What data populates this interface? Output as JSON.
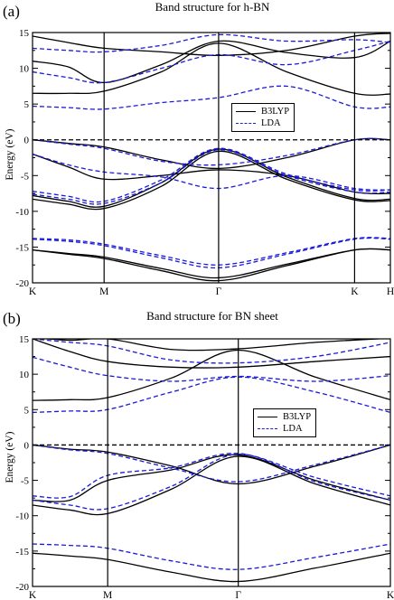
{
  "chart_data": [
    {
      "panel_label": "(a)",
      "type": "line",
      "title": "Band structure for h-BN",
      "ylabel": "Energy (eV)",
      "xlabel": "",
      "ylim": [
        -20,
        15
      ],
      "yticks": [
        -20,
        -15,
        -10,
        -5,
        0,
        5,
        10,
        15
      ],
      "kpath": [
        {
          "label": "K",
          "x": 0.0
        },
        {
          "label": "M",
          "x": 0.2
        },
        {
          "label": "Γ",
          "x": 0.52
        },
        {
          "label": "K",
          "x": 0.9
        },
        {
          "label": "H",
          "x": 1.0
        }
      ],
      "fermi_level": 0,
      "grid": false,
      "legend": {
        "placement": "center-right",
        "entries": [
          "B3LYP",
          "LDA"
        ]
      },
      "colors": {
        "B3LYP": "#000000",
        "LDA": "#1a1adc"
      },
      "series": [
        {
          "name": "B3LYP",
          "style": "solid",
          "color": "#000000",
          "bands": [
            {
              "x": [
                0,
                0.1,
                0.2,
                0.36,
                0.52,
                0.71,
                0.9,
                1.0
              ],
              "y": [
                -15.4,
                -15.9,
                -16.4,
                -18.0,
                -19.3,
                -17.4,
                -15.4,
                -15.4
              ]
            },
            {
              "x": [
                0,
                0.1,
                0.2,
                0.36,
                0.52,
                0.71,
                0.9,
                1.0
              ],
              "y": [
                -15.4,
                -16.0,
                -16.6,
                -18.3,
                -19.7,
                -17.6,
                -15.4,
                -15.4
              ]
            },
            {
              "x": [
                0,
                0.1,
                0.2,
                0.36,
                0.52,
                0.71,
                0.9,
                1.0
              ],
              "y": [
                -8.3,
                -9.0,
                -9.6,
                -6.5,
                -1.6,
                -5.5,
                -8.4,
                -8.5
              ]
            },
            {
              "x": [
                0,
                0.1,
                0.2,
                0.36,
                0.52,
                0.71,
                0.9,
                1.0
              ],
              "y": [
                -7.8,
                -8.6,
                -9.3,
                -6.0,
                -1.3,
                -5.2,
                -8.2,
                -8.3
              ]
            },
            {
              "x": [
                0,
                0.1,
                0.2,
                0.36,
                0.52,
                0.71,
                0.9,
                1.0
              ],
              "y": [
                -2.0,
                -3.8,
                -5.5,
                -5.0,
                -4.2,
                -5.0,
                -7.3,
                -7.5
              ]
            },
            {
              "x": [
                0,
                0.1,
                0.2,
                0.36,
                0.52,
                0.71,
                0.9,
                1.0
              ],
              "y": [
                0,
                -0.5,
                -1.0,
                -2.8,
                -4.0,
                -2.5,
                0,
                0
              ]
            },
            {
              "x": [
                0,
                0.1,
                0.2,
                0.36,
                0.52,
                0.71,
                0.9,
                1.0
              ],
              "y": [
                6.5,
                6.5,
                6.8,
                9.5,
                13.5,
                9.5,
                6.5,
                6.4
              ]
            },
            {
              "x": [
                0,
                0.1,
                0.2,
                0.36,
                0.52,
                0.71,
                0.9,
                1.0
              ],
              "y": [
                11.0,
                10.2,
                8.0,
                10.5,
                13.8,
                12.2,
                11.5,
                13.8
              ]
            },
            {
              "x": [
                0,
                0.1,
                0.2,
                0.36,
                0.52,
                0.71,
                0.9,
                1.0
              ],
              "y": [
                14.5,
                13.6,
                12.8,
                12.3,
                11.8,
                12.5,
                14.5,
                14.9
              ]
            }
          ]
        },
        {
          "name": "LDA",
          "style": "dashed",
          "color": "#1a1adc",
          "bands": [
            {
              "x": [
                0,
                0.1,
                0.2,
                0.36,
                0.52,
                0.71,
                0.9,
                1.0
              ],
              "y": [
                -13.8,
                -14.0,
                -14.6,
                -16.2,
                -17.5,
                -15.8,
                -13.8,
                -13.8
              ]
            },
            {
              "x": [
                0,
                0.1,
                0.2,
                0.36,
                0.52,
                0.71,
                0.9,
                1.0
              ],
              "y": [
                -13.9,
                -14.2,
                -14.8,
                -16.5,
                -17.9,
                -16.0,
                -13.9,
                -13.9
              ]
            },
            {
              "x": [
                0,
                0.1,
                0.2,
                0.36,
                0.52,
                0.71,
                0.9,
                1.0
              ],
              "y": [
                -7.6,
                -8.3,
                -8.9,
                -6.0,
                -1.4,
                -5.0,
                -7.3,
                -7.3
              ]
            },
            {
              "x": [
                0,
                0.1,
                0.2,
                0.36,
                0.52,
                0.71,
                0.9,
                1.0
              ],
              "y": [
                -7.2,
                -7.9,
                -8.6,
                -5.6,
                -1.2,
                -4.8,
                -7.0,
                -7.0
              ]
            },
            {
              "x": [
                0,
                0.1,
                0.2,
                0.36,
                0.52,
                0.71,
                0.9,
                1.0
              ],
              "y": [
                -2.0,
                -3.5,
                -4.5,
                -5.2,
                -6.8,
                -5.0,
                -6.8,
                -7.0
              ]
            },
            {
              "x": [
                0,
                0.1,
                0.2,
                0.36,
                0.52,
                0.71,
                0.9,
                1.0
              ],
              "y": [
                0,
                -0.6,
                -1.2,
                -3.0,
                -3.5,
                -2.2,
                0,
                0
              ]
            },
            {
              "x": [
                0,
                0.1,
                0.2,
                0.36,
                0.52,
                0.71,
                0.9,
                1.0
              ],
              "y": [
                4.7,
                4.5,
                4.3,
                5.2,
                5.9,
                7.5,
                4.6,
                4.6
              ]
            },
            {
              "x": [
                0,
                0.1,
                0.2,
                0.36,
                0.52,
                0.71,
                0.9,
                1.0
              ],
              "y": [
                9.5,
                8.7,
                8.0,
                10.0,
                11.9,
                10.5,
                12.5,
                13.8
              ]
            },
            {
              "x": [
                0,
                0.1,
                0.2,
                0.36,
                0.52,
                0.71,
                0.9,
                1.0
              ],
              "y": [
                12.8,
                12.5,
                12.3,
                13.2,
                14.7,
                13.8,
                14.0,
                13.6
              ]
            }
          ]
        }
      ]
    },
    {
      "panel_label": "(b)",
      "type": "line",
      "title": "Band structure for BN sheet",
      "ylabel": "Energy (eV)",
      "xlabel": "",
      "ylim": [
        -20,
        15
      ],
      "yticks": [
        -20,
        -15,
        -10,
        -5,
        0,
        5,
        10,
        15
      ],
      "kpath": [
        {
          "label": "K",
          "x": 0.0
        },
        {
          "label": "M",
          "x": 0.21
        },
        {
          "label": "Γ",
          "x": 0.575
        },
        {
          "label": "K",
          "x": 1.0
        }
      ],
      "fermi_level": 0,
      "grid": false,
      "legend": {
        "placement": "center-right",
        "entries": [
          "B3LYP",
          "LDA"
        ]
      },
      "colors": {
        "B3LYP": "#000000",
        "LDA": "#1a1adc"
      },
      "series": [
        {
          "name": "B3LYP",
          "style": "solid",
          "color": "#000000",
          "bands": [
            {
              "x": [
                0,
                0.105,
                0.21,
                0.39,
                0.575,
                0.79,
                1.0
              ],
              "y": [
                -15.3,
                -15.7,
                -16.2,
                -18.0,
                -19.3,
                -17.4,
                -15.3
              ]
            },
            {
              "x": [
                0,
                0.105,
                0.21,
                0.39,
                0.575,
                0.79,
                1.0
              ],
              "y": [
                -8.5,
                -9.2,
                -9.7,
                -6.2,
                -1.6,
                -5.5,
                -8.5
              ]
            },
            {
              "x": [
                0,
                0.105,
                0.21,
                0.39,
                0.575,
                0.79,
                1.0
              ],
              "y": [
                -7.8,
                -7.8,
                -5.0,
                -3.5,
                -1.4,
                -5.0,
                -7.8
              ]
            },
            {
              "x": [
                0,
                0.105,
                0.21,
                0.39,
                0.575,
                0.79,
                1.0
              ],
              "y": [
                0,
                -0.6,
                -1.0,
                -3.0,
                -5.5,
                -3.0,
                0
              ]
            },
            {
              "x": [
                0,
                0.105,
                0.21,
                0.39,
                0.575,
                0.79,
                1.0
              ],
              "y": [
                6.3,
                6.4,
                6.7,
                9.5,
                13.4,
                9.6,
                6.4
              ]
            },
            {
              "x": [
                0,
                0.105,
                0.21,
                0.39,
                0.575,
                0.79,
                1.0
              ],
              "y": [
                15.0,
                13.2,
                11.8,
                11.0,
                11.0,
                11.8,
                12.5
              ]
            },
            {
              "x": [
                0,
                0.105,
                0.21,
                0.39,
                0.575,
                0.79,
                1.0
              ],
              "y": [
                15.2,
                14.8,
                15.0,
                13.5,
                13.6,
                14.5,
                15.1
              ]
            }
          ]
        },
        {
          "name": "LDA",
          "style": "dashed",
          "color": "#1a1adc",
          "bands": [
            {
              "x": [
                0,
                0.105,
                0.21,
                0.39,
                0.575,
                0.79,
                1.0
              ],
              "y": [
                -14.0,
                -14.2,
                -14.6,
                -16.4,
                -17.6,
                -15.9,
                -14.0
              ]
            },
            {
              "x": [
                0,
                0.105,
                0.21,
                0.39,
                0.575,
                0.79,
                1.0
              ],
              "y": [
                -7.8,
                -8.5,
                -9.0,
                -5.8,
                -1.3,
                -5.2,
                -7.8
              ]
            },
            {
              "x": [
                0,
                0.105,
                0.21,
                0.39,
                0.575,
                0.79,
                1.0
              ],
              "y": [
                -7.2,
                -7.3,
                -4.3,
                -3.2,
                -1.2,
                -4.6,
                -7.2
              ]
            },
            {
              "x": [
                0,
                0.105,
                0.21,
                0.39,
                0.575,
                0.79,
                1.0
              ],
              "y": [
                0,
                -0.7,
                -1.2,
                -3.3,
                -5.2,
                -2.8,
                0
              ]
            },
            {
              "x": [
                0,
                0.105,
                0.21,
                0.39,
                0.575,
                0.79,
                1.0
              ],
              "y": [
                4.6,
                4.8,
                5.0,
                7.5,
                9.6,
                7.5,
                4.6
              ]
            },
            {
              "x": [
                0,
                0.105,
                0.21,
                0.39,
                0.575,
                0.79,
                1.0
              ],
              "y": [
                12.4,
                11.0,
                9.8,
                9.0,
                9.7,
                9.0,
                9.8
              ]
            },
            {
              "x": [
                0,
                0.105,
                0.21,
                0.39,
                0.575,
                0.79,
                1.0
              ],
              "y": [
                15.0,
                14.5,
                14.0,
                12.0,
                11.6,
                12.5,
                14.5
              ]
            }
          ]
        }
      ]
    }
  ]
}
